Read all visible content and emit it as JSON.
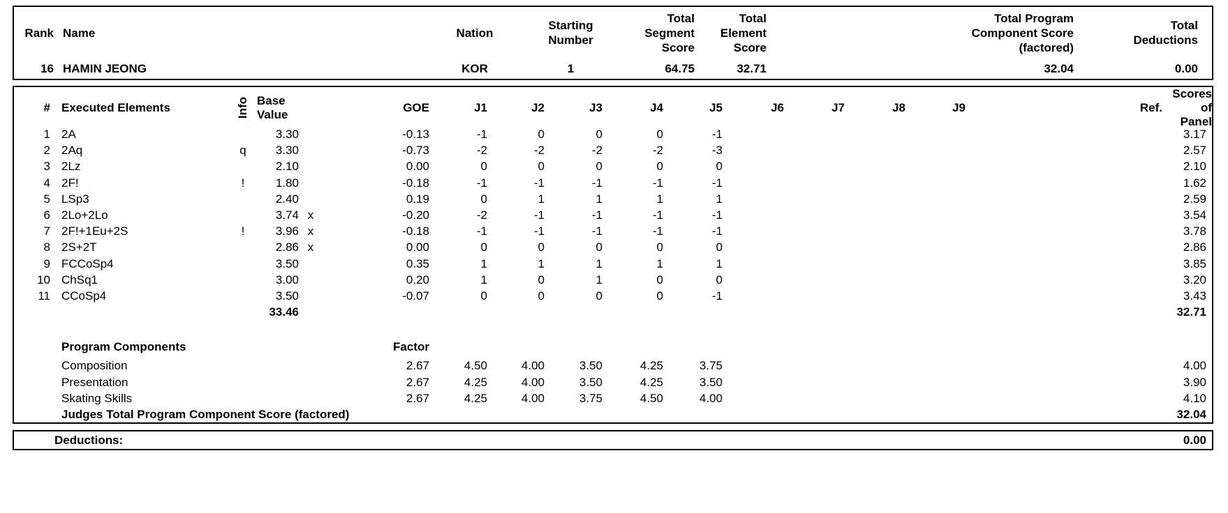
{
  "header": {
    "columns": {
      "rank": "Rank",
      "name": "Name",
      "nation": "Nation",
      "starting_number": "Starting\nNumber",
      "total_segment_score": "Total\nSegment\nScore",
      "total_element_score": "Total\nElement\nScore",
      "total_program_component_score": "Total Program\nComponent Score\n(factored)",
      "total_deductions": "Total\nDeductions"
    },
    "skater": {
      "rank": "16",
      "name": "HAMIN JEONG",
      "nation": "KOR",
      "starting_number": "1",
      "total_segment_score": "64.75",
      "total_element_score": "32.71",
      "total_program_component_score": "32.04",
      "total_deductions": "0.00"
    }
  },
  "elements_table": {
    "columns": {
      "num": "#",
      "executed_elements": "Executed Elements",
      "info": "Info",
      "base_value": "Base\nValue",
      "goe": "GOE",
      "judges": [
        "J1",
        "J2",
        "J3",
        "J4",
        "J5",
        "J6",
        "J7",
        "J8",
        "J9"
      ],
      "ref": "Ref.",
      "scores_of_panel": "Scores of\nPanel"
    },
    "rows": [
      {
        "num": "1",
        "element": "2A",
        "info": "",
        "base_value": "3.30",
        "credit": "",
        "goe": "-0.13",
        "judges": [
          "-1",
          "0",
          "0",
          "0",
          "-1",
          "",
          "",
          "",
          ""
        ],
        "ref": "",
        "panel_score": "3.17"
      },
      {
        "num": "2",
        "element": "2Aq",
        "info": "q",
        "base_value": "3.30",
        "credit": "",
        "goe": "-0.73",
        "judges": [
          "-2",
          "-2",
          "-2",
          "-2",
          "-3",
          "",
          "",
          "",
          ""
        ],
        "ref": "",
        "panel_score": "2.57"
      },
      {
        "num": "3",
        "element": "2Lz",
        "info": "",
        "base_value": "2.10",
        "credit": "",
        "goe": "0.00",
        "judges": [
          "0",
          "0",
          "0",
          "0",
          "0",
          "",
          "",
          "",
          ""
        ],
        "ref": "",
        "panel_score": "2.10"
      },
      {
        "num": "4",
        "element": "2F!",
        "info": "!",
        "base_value": "1.80",
        "credit": "",
        "goe": "-0.18",
        "judges": [
          "-1",
          "-1",
          "-1",
          "-1",
          "-1",
          "",
          "",
          "",
          ""
        ],
        "ref": "",
        "panel_score": "1.62"
      },
      {
        "num": "5",
        "element": "LSp3",
        "info": "",
        "base_value": "2.40",
        "credit": "",
        "goe": "0.19",
        "judges": [
          "0",
          "1",
          "1",
          "1",
          "1",
          "",
          "",
          "",
          ""
        ],
        "ref": "",
        "panel_score": "2.59"
      },
      {
        "num": "6",
        "element": "2Lo+2Lo",
        "info": "",
        "base_value": "3.74",
        "credit": "x",
        "goe": "-0.20",
        "judges": [
          "-2",
          "-1",
          "-1",
          "-1",
          "-1",
          "",
          "",
          "",
          ""
        ],
        "ref": "",
        "panel_score": "3.54"
      },
      {
        "num": "7",
        "element": "2F!+1Eu+2S",
        "info": "!",
        "base_value": "3.96",
        "credit": "x",
        "goe": "-0.18",
        "judges": [
          "-1",
          "-1",
          "-1",
          "-1",
          "-1",
          "",
          "",
          "",
          ""
        ],
        "ref": "",
        "panel_score": "3.78"
      },
      {
        "num": "8",
        "element": "2S+2T",
        "info": "",
        "base_value": "2.86",
        "credit": "x",
        "goe": "0.00",
        "judges": [
          "0",
          "0",
          "0",
          "0",
          "0",
          "",
          "",
          "",
          ""
        ],
        "ref": "",
        "panel_score": "2.86"
      },
      {
        "num": "9",
        "element": "FCCoSp4",
        "info": "",
        "base_value": "3.50",
        "credit": "",
        "goe": "0.35",
        "judges": [
          "1",
          "1",
          "1",
          "1",
          "1",
          "",
          "",
          "",
          ""
        ],
        "ref": "",
        "panel_score": "3.85"
      },
      {
        "num": "10",
        "element": "ChSq1",
        "info": "",
        "base_value": "3.00",
        "credit": "",
        "goe": "0.20",
        "judges": [
          "1",
          "0",
          "1",
          "0",
          "0",
          "",
          "",
          "",
          ""
        ],
        "ref": "",
        "panel_score": "3.20"
      },
      {
        "num": "11",
        "element": "CCoSp4",
        "info": "",
        "base_value": "3.50",
        "credit": "",
        "goe": "-0.07",
        "judges": [
          "0",
          "0",
          "0",
          "0",
          "-1",
          "",
          "",
          "",
          ""
        ],
        "ref": "",
        "panel_score": "3.43"
      }
    ],
    "totals": {
      "base_value": "33.46",
      "panel_score": "32.71"
    }
  },
  "program_components": {
    "title": "Program Components",
    "factor_label": "Factor",
    "rows": [
      {
        "name": "Composition",
        "factor": "2.67",
        "judges": [
          "4.50",
          "4.00",
          "3.50",
          "4.25",
          "3.75",
          "",
          "",
          "",
          ""
        ],
        "panel_score": "4.00"
      },
      {
        "name": "Presentation",
        "factor": "2.67",
        "judges": [
          "4.25",
          "4.00",
          "3.50",
          "4.25",
          "3.50",
          "",
          "",
          "",
          ""
        ],
        "panel_score": "3.90"
      },
      {
        "name": "Skating Skills",
        "factor": "2.67",
        "judges": [
          "4.25",
          "4.00",
          "3.75",
          "4.50",
          "4.00",
          "",
          "",
          "",
          ""
        ],
        "panel_score": "4.10"
      }
    ],
    "total_label": "Judges Total Program Component Score (factored)",
    "total_value": "32.04"
  },
  "deductions": {
    "label": "Deductions:",
    "value": "0.00"
  }
}
